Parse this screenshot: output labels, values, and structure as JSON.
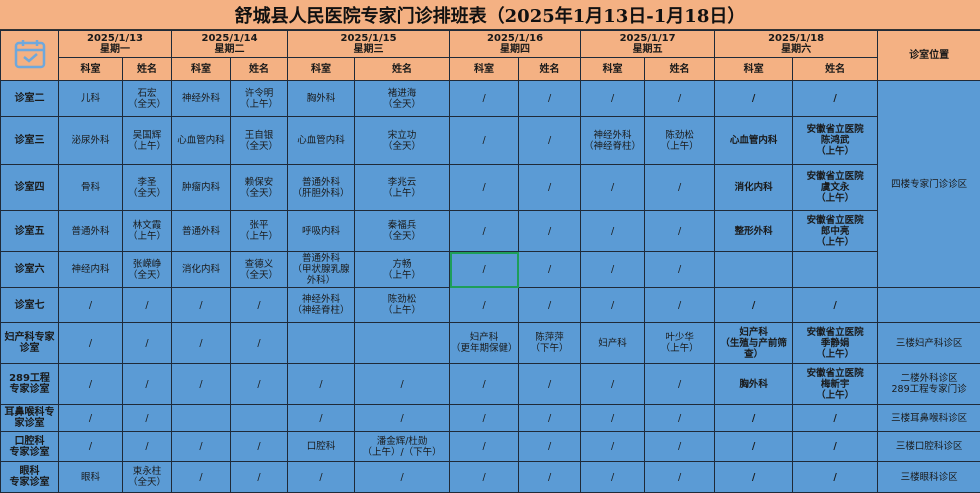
{
  "title": "舒城县人民医院专家门诊排班表（2025年1月13日-1月18日）",
  "icon": "calendar-check-icon",
  "colors": {
    "header": "#f4b183",
    "body": "#5b9bd5",
    "selection": "#1e9e5a"
  },
  "days": [
    {
      "date": "2025/1/13",
      "weekday": "星期一"
    },
    {
      "date": "2025/1/14",
      "weekday": "星期二"
    },
    {
      "date": "2025/1/15",
      "weekday": "星期三"
    },
    {
      "date": "2025/1/16",
      "weekday": "星期四"
    },
    {
      "date": "2025/1/17",
      "weekday": "星期五"
    },
    {
      "date": "2025/1/18",
      "weekday": "星期六"
    }
  ],
  "sub_headers": {
    "dept": "科室",
    "name": "姓名"
  },
  "location_header": "诊室位置",
  "rows": [
    {
      "room": "诊室二",
      "cells": [
        "儿科",
        "石宏\n（全天）",
        "神经外科",
        "许令明\n（上午）",
        "胸外科",
        "褚进海\n（全天）",
        "/",
        "/",
        "/",
        "/",
        "/",
        "/"
      ],
      "location": "四楼专家门诊诊区",
      "location_span": 5
    },
    {
      "room": "诊室三",
      "cells": [
        "泌尿外科",
        "吴国辉\n（上午）",
        "心血管内科",
        "王自银\n（全天）",
        "心血管内科",
        "宋立功\n（全天）",
        "/",
        "/",
        "神经外科\n（神经脊柱）",
        "陈劲松\n（上午）",
        "心血管内科",
        "安徽省立医院\n陈鸿武\n（上午）"
      ]
    },
    {
      "room": "诊室四",
      "cells": [
        "骨科",
        "李圣\n（全天）",
        "肿瘤内科",
        "赖保安\n（全天）",
        "普通外科\n（肝胆外科）",
        "李兆云\n（上午）",
        "/",
        "/",
        "/",
        "/",
        "消化内科",
        "安徽省立医院\n虞文永\n（上午）"
      ]
    },
    {
      "room": "诊室五",
      "cells": [
        "普通外科",
        "林文霞\n（上午）",
        "普通外科",
        "张平\n（上午）",
        "呼吸内科",
        "秦福兵\n（全天）",
        "/",
        "/",
        "/",
        "/",
        "整形外科",
        "安徽省立医院\n郎中亮\n（上午）"
      ]
    },
    {
      "room": "诊室六",
      "cells": [
        "神经内科",
        "张嵘峥\n（全天）",
        "消化内科",
        "查德义\n（全天）",
        "普通外科\n（甲状腺乳腺\n外科）",
        "方畅\n（上午）",
        "/",
        "/",
        "/",
        "/",
        "",
        ""
      ]
    },
    {
      "room": "诊室七",
      "cells": [
        "/",
        "/",
        "/",
        "/",
        "神经外科\n（神经脊柱）",
        "陈劲松\n（上午）",
        "/",
        "/",
        "/",
        "/",
        "/",
        "/"
      ],
      "location": ""
    },
    {
      "room": "妇产科专家\n诊室",
      "cells": [
        "/",
        "/",
        "/",
        "/",
        "",
        "",
        "妇产科\n（更年期保健）",
        "陈萍萍\n（下午）",
        "妇产科",
        "叶少华\n（上午）",
        "妇产科\n（生殖与产前筛\n查）",
        "安徽省立医院\n季静娟\n（上午）"
      ],
      "location": "三楼妇产科诊区"
    },
    {
      "room": "289工程\n专家诊室",
      "cells": [
        "/",
        "/",
        "/",
        "/",
        "/",
        "/",
        "/",
        "/",
        "/",
        "/",
        "胸外科",
        "安徽省立医院\n梅新宇\n（上午）"
      ],
      "location": "二楼外科诊区\n289工程专家门诊"
    },
    {
      "room": "耳鼻喉科专\n家诊室",
      "cells": [
        "/",
        "/",
        "",
        "",
        "/",
        "/",
        "/",
        "/",
        "/",
        "/",
        "/",
        "/"
      ],
      "location": "三楼耳鼻喉科诊区"
    },
    {
      "room": "口腔科\n专家诊室",
      "cells": [
        "/",
        "/",
        "/",
        "/",
        "口腔科",
        "潘金辉/杜勋\n（上午）/（下午）",
        "/",
        "/",
        "/",
        "/",
        "/",
        "/"
      ],
      "location": "三楼口腔科诊区"
    },
    {
      "room": "眼科\n专家诊室",
      "cells": [
        "眼科",
        "束永柱\n（全天）",
        "/",
        "/",
        "/",
        "/",
        "/",
        "/",
        "/",
        "/",
        "/",
        "/"
      ],
      "location": "三楼眼科诊区"
    }
  ]
}
